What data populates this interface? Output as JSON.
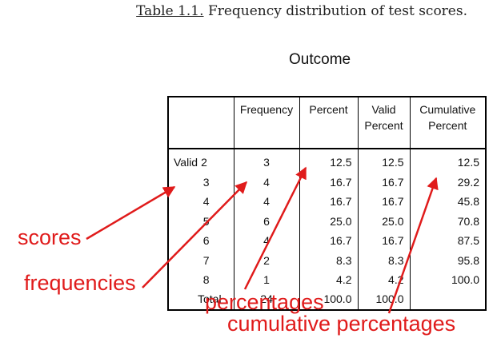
{
  "caption": {
    "label": "Table 1.1.",
    "text": "Frequency distribution of test scores."
  },
  "table_title": "Outcome",
  "headers": {
    "frequency": "Frequency",
    "percent": "Percent",
    "valid_percent_1": "Valid",
    "valid_percent_2": "Percent",
    "cumulative_percent_1": "Cumulative",
    "cumulative_percent_2": "Percent"
  },
  "group_label": "Valid",
  "rows": [
    {
      "score": "2",
      "frequency": "3",
      "percent": "12.5",
      "valid_percent": "12.5",
      "cumulative_percent": "12.5"
    },
    {
      "score": "3",
      "frequency": "4",
      "percent": "16.7",
      "valid_percent": "16.7",
      "cumulative_percent": "29.2"
    },
    {
      "score": "4",
      "frequency": "4",
      "percent": "16.7",
      "valid_percent": "16.7",
      "cumulative_percent": "45.8"
    },
    {
      "score": "5",
      "frequency": "6",
      "percent": "25.0",
      "valid_percent": "25.0",
      "cumulative_percent": "70.8"
    },
    {
      "score": "6",
      "frequency": "4",
      "percent": "16.7",
      "valid_percent": "16.7",
      "cumulative_percent": "87.5"
    },
    {
      "score": "7",
      "frequency": "2",
      "percent": "8.3",
      "valid_percent": "8.3",
      "cumulative_percent": "95.8"
    },
    {
      "score": "8",
      "frequency": "1",
      "percent": "4.2",
      "valid_percent": "4.2",
      "cumulative_percent": "100.0"
    }
  ],
  "total": {
    "label": "Total",
    "frequency": "24",
    "percent": "100.0",
    "valid_percent": "100.0"
  },
  "annotations": {
    "scores": "scores",
    "frequencies": "frequencies",
    "percentages": "percentages",
    "cumulative": "cumulative percentages"
  },
  "colors": {
    "annotation": "#e01b1b",
    "text": "#111111"
  }
}
